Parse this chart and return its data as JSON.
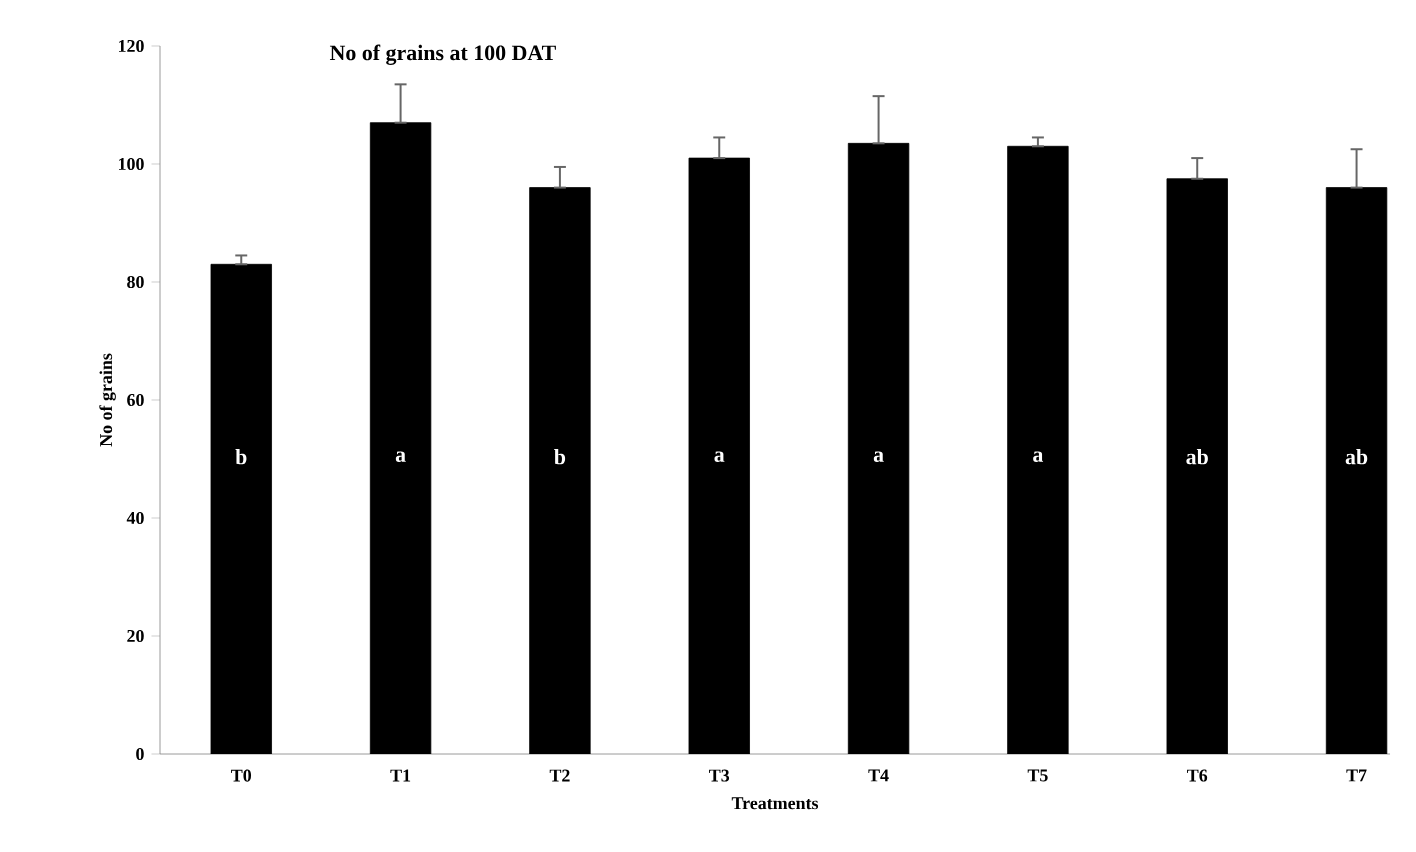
{
  "chart_data": {
    "type": "bar",
    "title": "No of grains at 100 DAT",
    "xlabel": "Treatments",
    "ylabel": "No of grains",
    "categories": [
      "T0",
      "T1",
      "T2",
      "T3",
      "T4",
      "T5",
      "T6",
      "T7"
    ],
    "values": [
      83,
      107,
      96,
      101,
      103.5,
      103,
      97.5,
      96
    ],
    "errors": [
      [
        83,
        84.5
      ],
      [
        107,
        113.5
      ],
      [
        96,
        99.5
      ],
      [
        101,
        104.5
      ],
      [
        103.5,
        111.5
      ],
      [
        103,
        104.5
      ],
      [
        97.5,
        101
      ],
      [
        96,
        102.5
      ]
    ],
    "color": "#000000",
    "ylim": [
      0,
      120
    ],
    "yticks": [
      0,
      20,
      40,
      60,
      80,
      100,
      120
    ],
    "grid": false,
    "annotations": [
      "b",
      "a",
      "b",
      "a",
      "a",
      "a",
      "ab",
      "ab"
    ]
  }
}
